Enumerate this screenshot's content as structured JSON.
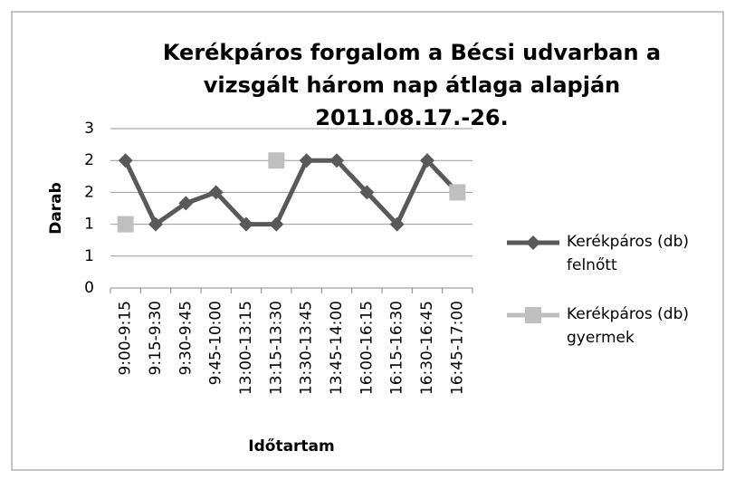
{
  "chart_data": {
    "type": "line",
    "title": "Kerékpáros forgalom a Bécsi udvarban a vizsgált három nap átlaga alapján 2011.08.17.-26.",
    "x_label": "Időtartam",
    "y_label": "Darab",
    "categories": [
      "9:00-9:15",
      "9:15-9:30",
      "9:30-9:45",
      "9:45-10:00",
      "13:00-13:15",
      "13:15-13:30",
      "13:30-13:45",
      "13:45-14:00",
      "16:00-16:15",
      "16:15-16:30",
      "16:30-16:45",
      "16:45-17:00"
    ],
    "series": [
      {
        "name": "Kerékpáros (db) felnőtt",
        "color": "#595959",
        "marker": "diamond",
        "values": [
          2,
          1,
          1.33,
          1.5,
          1,
          1,
          2,
          2,
          1.5,
          1,
          2,
          1.5
        ]
      },
      {
        "name": "Kerékpáros (db) gyermek",
        "color": "#bfbfbf",
        "marker": "square",
        "values": [
          1,
          null,
          null,
          null,
          null,
          2,
          null,
          null,
          null,
          null,
          null,
          1.5
        ]
      }
    ],
    "ylim": [
      0,
      2.5
    ],
    "yticks": [
      0,
      {
        "value": 0.5,
        "label": "1"
      },
      1,
      {
        "value": 1.5,
        "label": "2"
      },
      2,
      {
        "value": 2.5,
        "label": "3"
      }
    ],
    "grid": true,
    "legend": "right"
  }
}
